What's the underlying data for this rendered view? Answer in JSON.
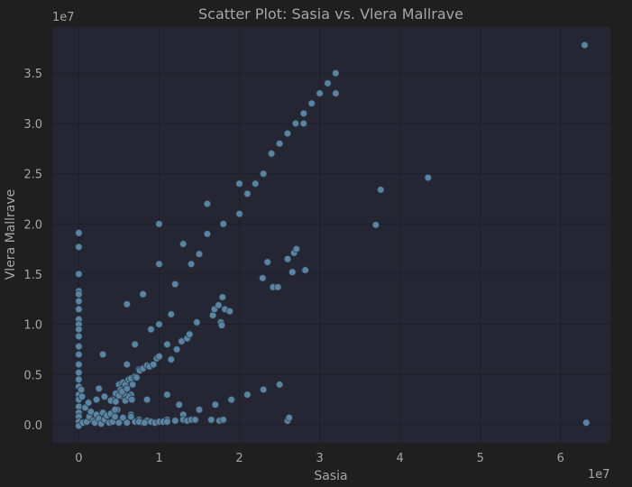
{
  "colors": {
    "page_bg": "#1f1f1f",
    "plot_bg": "#252633",
    "grid": "#1e1f28",
    "text": "#a6a6a6",
    "marker": "#5b84a3",
    "marker_edge": "#2b3a48"
  },
  "chart_data": {
    "type": "scatter",
    "title": "Scatter Plot: Sasia vs. Vlera Mallrave",
    "xlabel": "Sasia",
    "ylabel": "Vlera Mallrave",
    "x_multiplier": "1e7",
    "y_multiplier": "1e7",
    "xlim": [
      -0.33,
      6.62
    ],
    "ylim": [
      -0.18,
      3.96
    ],
    "xticks": [
      0,
      1,
      2,
      3,
      4,
      5,
      6
    ],
    "xtick_labels": [
      "0",
      "1",
      "2",
      "3",
      "4",
      "5",
      "6"
    ],
    "yticks": [
      0.0,
      0.5,
      1.0,
      1.5,
      2.0,
      2.5,
      3.0,
      3.5
    ],
    "ytick_labels": [
      "0.0",
      "0.5",
      "1.0",
      "1.5",
      "2.0",
      "2.5",
      "3.0",
      "3.5"
    ],
    "grid": true,
    "legend": "none",
    "x_unit_note": "values in units of 1e7",
    "points": [
      [
        0.0,
        1.91
      ],
      [
        0.0,
        1.77
      ],
      [
        0.0,
        1.5
      ],
      [
        0.0,
        1.33
      ],
      [
        0.0,
        1.3
      ],
      [
        0.0,
        1.23
      ],
      [
        0.0,
        1.15
      ],
      [
        0.0,
        1.05
      ],
      [
        0.0,
        1.0
      ],
      [
        0.0,
        0.95
      ],
      [
        0.0,
        0.88
      ],
      [
        0.0,
        0.78
      ],
      [
        0.0,
        0.7
      ],
      [
        0.0,
        0.6
      ],
      [
        0.0,
        0.52
      ],
      [
        0.0,
        0.45
      ],
      [
        0.0,
        0.38
      ],
      [
        0.0,
        0.3
      ],
      [
        0.0,
        0.25
      ],
      [
        0.0,
        0.18
      ],
      [
        0.0,
        0.12
      ],
      [
        0.0,
        0.08
      ],
      [
        0.0,
        0.03
      ],
      [
        0.0,
        -0.01
      ],
      [
        0.03,
        0.35
      ],
      [
        0.04,
        0.28
      ],
      [
        0.05,
        0.02
      ],
      [
        0.08,
        0.17
      ],
      [
        0.1,
        0.03
      ],
      [
        0.12,
        0.22
      ],
      [
        0.13,
        0.08
      ],
      [
        0.15,
        0.13
      ],
      [
        0.18,
        0.04
      ],
      [
        0.2,
        0.02
      ],
      [
        0.22,
        0.1
      ],
      [
        0.25,
        0.06
      ],
      [
        0.28,
        0.01
      ],
      [
        0.3,
        0.12
      ],
      [
        0.32,
        0.05
      ],
      [
        0.35,
        0.09
      ],
      [
        0.38,
        0.02
      ],
      [
        0.4,
        0.11
      ],
      [
        0.42,
        0.03
      ],
      [
        0.45,
        0.08
      ],
      [
        0.48,
        0.15
      ],
      [
        0.5,
        0.02
      ],
      [
        0.55,
        0.07
      ],
      [
        0.6,
        0.02
      ],
      [
        0.65,
        0.1
      ],
      [
        0.7,
        0.03
      ],
      [
        0.75,
        0.05
      ],
      [
        0.8,
        0.02
      ],
      [
        0.85,
        0.04
      ],
      [
        0.9,
        0.03
      ],
      [
        0.25,
        0.36
      ],
      [
        0.5,
        0.4
      ],
      [
        0.7,
        0.8
      ],
      [
        0.8,
        1.3
      ],
      [
        1.0,
        2.0
      ],
      [
        1.0,
        1.0
      ],
      [
        1.2,
        1.4
      ],
      [
        1.4,
        1.6
      ],
      [
        1.5,
        1.7
      ],
      [
        1.6,
        1.9
      ],
      [
        1.8,
        2.0
      ],
      [
        2.0,
        2.1
      ],
      [
        2.1,
        2.3
      ],
      [
        2.2,
        2.4
      ],
      [
        2.3,
        2.5
      ],
      [
        2.4,
        2.7
      ],
      [
        2.5,
        2.8
      ],
      [
        2.6,
        2.9
      ],
      [
        2.7,
        3.0
      ],
      [
        2.8,
        3.1
      ],
      [
        2.9,
        3.2
      ],
      [
        3.0,
        3.3
      ],
      [
        3.1,
        3.4
      ],
      [
        3.2,
        3.5
      ],
      [
        1.1,
        0.05
      ],
      [
        1.3,
        0.1
      ],
      [
        1.5,
        0.15
      ],
      [
        1.7,
        0.2
      ],
      [
        1.9,
        0.25
      ],
      [
        2.1,
        0.3
      ],
      [
        2.3,
        0.35
      ],
      [
        2.5,
        0.4
      ],
      [
        0.3,
        0.7
      ],
      [
        0.6,
        1.2
      ],
      [
        1.0,
        1.6
      ],
      [
        1.3,
        1.8
      ],
      [
        1.6,
        2.2
      ],
      [
        2.0,
        2.4
      ],
      [
        2.4,
        2.7
      ],
      [
        2.8,
        3.0
      ],
      [
        3.2,
        3.3
      ],
      [
        0.22,
        0.25
      ],
      [
        0.45,
        0.15
      ],
      [
        0.65,
        0.3
      ],
      [
        0.85,
        0.25
      ],
      [
        1.1,
        0.3
      ],
      [
        1.25,
        0.2
      ],
      [
        0.6,
        0.6
      ],
      [
        0.9,
        0.95
      ],
      [
        1.15,
        1.1
      ],
      [
        0.32,
        0.28
      ],
      [
        0.42,
        0.25
      ],
      [
        0.55,
        0.42
      ],
      [
        0.75,
        0.55
      ],
      [
        0.52,
        0.35
      ],
      [
        0.46,
        0.31
      ],
      [
        0.4,
        0.24
      ],
      [
        0.46,
        0.23
      ],
      [
        0.55,
        0.28
      ],
      [
        0.58,
        0.4
      ],
      [
        0.62,
        0.45
      ],
      [
        0.65,
        0.46
      ],
      [
        0.67,
        0.4
      ],
      [
        0.7,
        0.48
      ],
      [
        0.72,
        0.47
      ],
      [
        0.76,
        0.54
      ],
      [
        0.8,
        0.56
      ],
      [
        0.85,
        0.59
      ],
      [
        0.88,
        0.58
      ],
      [
        0.93,
        0.6
      ],
      [
        0.97,
        0.66
      ],
      [
        1.0,
        0.68
      ],
      [
        0.58,
        0.24
      ],
      [
        0.62,
        0.28
      ],
      [
        0.66,
        0.25
      ],
      [
        0.56,
        0.31
      ],
      [
        0.5,
        0.29
      ],
      [
        0.54,
        0.33
      ],
      [
        0.6,
        0.36
      ],
      [
        0.65,
        0.08
      ],
      [
        0.75,
        0.03
      ],
      [
        0.82,
        0.02
      ],
      [
        0.9,
        0.03
      ],
      [
        0.95,
        0.02
      ],
      [
        1.0,
        0.03
      ],
      [
        1.05,
        0.03
      ],
      [
        1.1,
        0.03
      ],
      [
        1.2,
        0.04
      ],
      [
        1.3,
        0.05
      ],
      [
        1.35,
        0.04
      ],
      [
        1.4,
        0.05
      ],
      [
        1.45,
        0.05
      ],
      [
        1.65,
        0.05
      ],
      [
        1.75,
        0.04
      ],
      [
        1.8,
        0.05
      ],
      [
        2.6,
        0.04
      ],
      [
        2.62,
        0.07
      ],
      [
        6.32,
        0.02
      ],
      [
        1.1,
        0.8
      ],
      [
        1.15,
        0.65
      ],
      [
        1.22,
        0.75
      ],
      [
        1.28,
        0.83
      ],
      [
        1.35,
        0.86
      ],
      [
        1.38,
        0.9
      ],
      [
        1.47,
        1.02
      ],
      [
        1.67,
        1.09
      ],
      [
        1.69,
        1.15
      ],
      [
        1.74,
        1.19
      ],
      [
        1.77,
        1.02
      ],
      [
        1.78,
        0.99
      ],
      [
        1.79,
        1.27
      ],
      [
        1.82,
        1.15
      ],
      [
        1.88,
        1.13
      ],
      [
        2.29,
        1.46
      ],
      [
        2.35,
        1.62
      ],
      [
        2.42,
        1.37
      ],
      [
        2.48,
        1.37
      ],
      [
        2.6,
        1.65
      ],
      [
        2.66,
        1.52
      ],
      [
        2.68,
        1.71
      ],
      [
        2.71,
        1.75
      ],
      [
        2.82,
        1.54
      ],
      [
        3.7,
        1.99
      ],
      [
        3.76,
        2.34
      ],
      [
        4.35,
        2.46
      ],
      [
        6.3,
        3.78
      ]
    ]
  }
}
